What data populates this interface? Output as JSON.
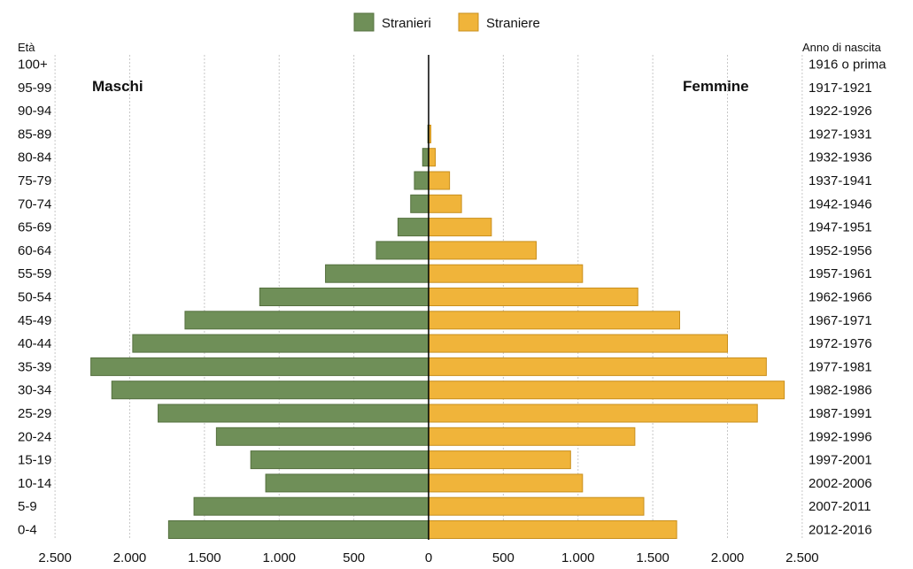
{
  "chart_data": {
    "type": "bar",
    "legend": {
      "position": "top-center",
      "items": [
        "Stranieri",
        "Straniere"
      ]
    },
    "colors": {
      "male": "#6f8f58",
      "female": "#f0b43a",
      "male_edge": "#55703f",
      "female_edge": "#c98f1d"
    },
    "age_axis_title": "Età",
    "birth_axis_title": "Anno di nascita",
    "left_label": "Maschi",
    "right_label": "Femmine",
    "x_ticks": [
      "2.500",
      "2.000",
      "1.500",
      "1.000",
      "500",
      "0",
      "500",
      "1.000",
      "1.500",
      "2.000",
      "2.500"
    ],
    "xlim": [
      -2500,
      2500
    ],
    "grid": true,
    "categories": [
      "100+",
      "95-99",
      "90-94",
      "85-89",
      "80-84",
      "75-79",
      "70-74",
      "65-69",
      "60-64",
      "55-59",
      "50-54",
      "45-49",
      "40-44",
      "35-39",
      "30-34",
      "25-29",
      "20-24",
      "15-19",
      "10-14",
      "5-9",
      "0-4"
    ],
    "birth_years": [
      "1916 o prima",
      "1917-1921",
      "1922-1926",
      "1927-1931",
      "1932-1936",
      "1937-1941",
      "1942-1946",
      "1947-1951",
      "1952-1956",
      "1957-1961",
      "1962-1966",
      "1967-1971",
      "1972-1976",
      "1977-1981",
      "1982-1986",
      "1987-1991",
      "1992-1996",
      "1997-2001",
      "2002-2006",
      "2007-2011",
      "2012-2016"
    ],
    "series": [
      {
        "name": "Stranieri",
        "values": [
          0,
          0,
          0,
          5,
          40,
          95,
          120,
          205,
          350,
          690,
          1130,
          1630,
          1980,
          2260,
          2120,
          1810,
          1420,
          1190,
          1090,
          1570,
          1740
        ]
      },
      {
        "name": "Straniere",
        "values": [
          0,
          0,
          0,
          15,
          45,
          140,
          220,
          420,
          720,
          1030,
          1400,
          1680,
          2000,
          2260,
          2380,
          2200,
          1380,
          950,
          1030,
          1440,
          1660
        ]
      }
    ]
  }
}
